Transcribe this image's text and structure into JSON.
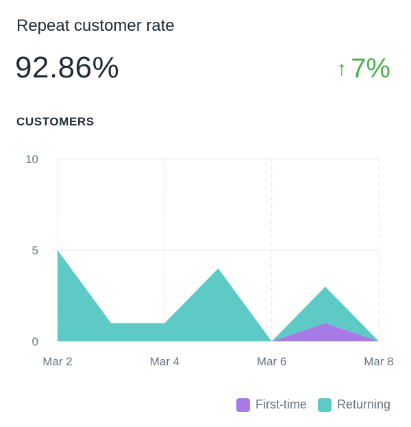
{
  "card": {
    "title": "Repeat customer rate",
    "value": "92.86%",
    "change": "7%",
    "change_direction": "up",
    "change_icon": "arrow-up-icon",
    "change_color": "#4caf50",
    "section_label": "CUSTOMERS"
  },
  "chart_data": {
    "type": "area",
    "x": [
      "Mar 2",
      "Mar 3",
      "Mar 4",
      "Mar 5",
      "Mar 6",
      "Mar 7",
      "Mar 8"
    ],
    "x_tick_labels": [
      "Mar 2",
      "Mar 4",
      "Mar 6",
      "Mar 8"
    ],
    "y_ticks": [
      0,
      5,
      10
    ],
    "ylim": [
      0,
      10
    ],
    "stacked": true,
    "grid": true,
    "legend_position": "bottom-right",
    "series": [
      {
        "name": "First-time",
        "color": "#a87ae6",
        "values": [
          0,
          0,
          0,
          0,
          0,
          1,
          0
        ]
      },
      {
        "name": "Returning",
        "color": "#5ecac5",
        "values": [
          5,
          1,
          1,
          4,
          0,
          2,
          0
        ]
      }
    ]
  }
}
